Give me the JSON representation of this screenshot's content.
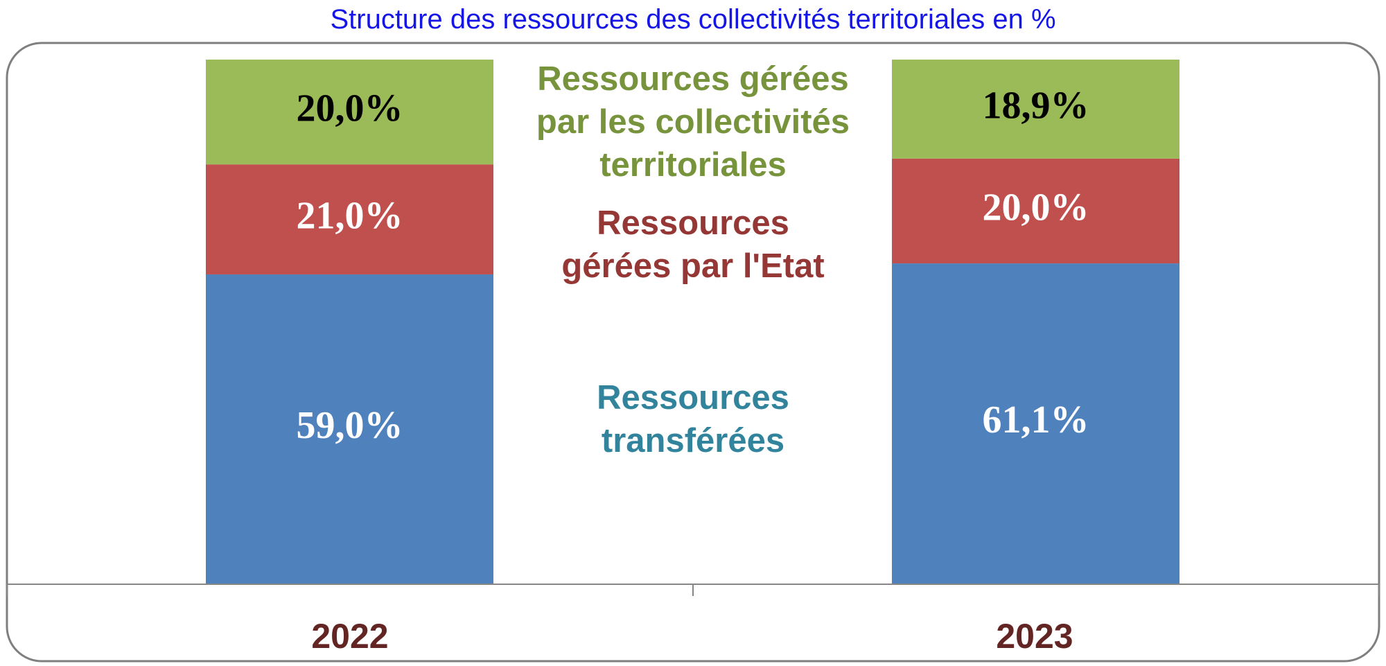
{
  "title": "Structure des ressources des collectivités territoriales en %",
  "colors": {
    "transferees": "#4f81bd",
    "etat": "#c0504d",
    "collectivites": "#9bbb59",
    "title": "#1515e6",
    "label_transferees": "#31849b",
    "label_etat": "#953735",
    "label_collectivites": "#77933c",
    "category_text": "#632523"
  },
  "chart_data": {
    "type": "bar",
    "stacked": true,
    "title": "Structure des ressources des collectivités territoriales en %",
    "categories": [
      "2022",
      "2023"
    ],
    "series": [
      {
        "name": "Ressources transférées",
        "name_lines": [
          "Ressources",
          "transférées"
        ],
        "values": [
          59.0,
          61.1
        ],
        "labels": [
          "59,0%",
          "61,1%"
        ],
        "label_color": "#ffffff"
      },
      {
        "name": "Ressources gérées par l'Etat",
        "name_lines": [
          "Ressources",
          "gérées par l'Etat"
        ],
        "values": [
          21.0,
          20.0
        ],
        "labels": [
          "21,0%",
          "20,0%"
        ],
        "label_color": "#ffffff"
      },
      {
        "name": "Ressources gérées par les collectivités territoriales",
        "name_lines": [
          "Ressources gérées",
          "par les collectivités",
          "territoriales"
        ],
        "values": [
          20.0,
          18.9
        ],
        "labels": [
          "20,0%",
          "18,9%"
        ],
        "label_color": "#000000"
      }
    ],
    "ylim": [
      0,
      100
    ],
    "grid": false,
    "legend": "center, between bars"
  }
}
